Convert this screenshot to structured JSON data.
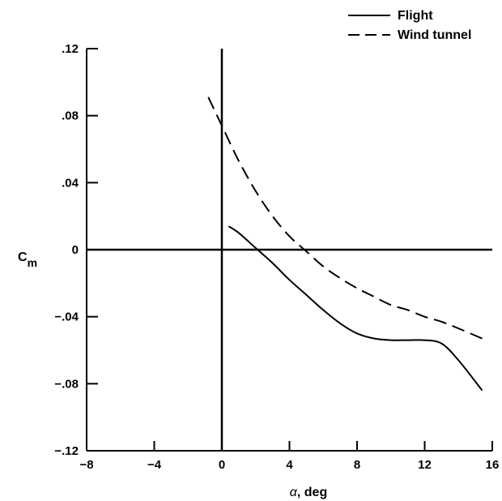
{
  "chart_data": {
    "type": "line",
    "title": "",
    "xlabel_symbol": "α",
    "xlabel_rest": ", deg",
    "ylabel_main": "C",
    "ylabel_sub": "m",
    "xlim": [
      -8,
      16
    ],
    "ylim": [
      -0.12,
      0.12
    ],
    "x_ticks": [
      -8,
      -4,
      0,
      4,
      8,
      12,
      16
    ],
    "x_tick_labels": [
      "−8",
      "−4",
      "0",
      "4",
      "8",
      "12",
      "16"
    ],
    "y_ticks": [
      0.12,
      0.08,
      0.04,
      0,
      -0.04,
      -0.08,
      -0.12
    ],
    "y_tick_labels": [
      ".12",
      ".08",
      ".04",
      "0",
      "−.04",
      "−.08",
      "−.12"
    ],
    "grid": false,
    "legend_position": "top-right",
    "series": [
      {
        "name": "Flight",
        "style": "solid",
        "x": [
          0.4,
          1.0,
          2.0,
          3.0,
          4.0,
          5.0,
          6.0,
          7.0,
          8.0,
          9.0,
          10.0,
          11.0,
          12.0,
          13.0,
          14.0,
          15.4
        ],
        "y": [
          0.014,
          0.01,
          0.001,
          -0.008,
          -0.018,
          -0.027,
          -0.036,
          -0.044,
          -0.05,
          -0.053,
          -0.054,
          -0.054,
          -0.054,
          -0.056,
          -0.066,
          -0.084
        ]
      },
      {
        "name": "Wind tunnel",
        "style": "dashed",
        "x": [
          -0.8,
          0.0,
          1.0,
          2.0,
          3.0,
          4.0,
          5.0,
          6.0,
          7.0,
          8.0,
          9.0,
          10.0,
          11.0,
          12.0,
          13.0,
          14.0,
          15.4
        ],
        "y": [
          0.091,
          0.074,
          0.053,
          0.035,
          0.02,
          0.008,
          -0.001,
          -0.01,
          -0.017,
          -0.023,
          -0.028,
          -0.033,
          -0.036,
          -0.04,
          -0.043,
          -0.047,
          -0.053
        ]
      }
    ]
  }
}
